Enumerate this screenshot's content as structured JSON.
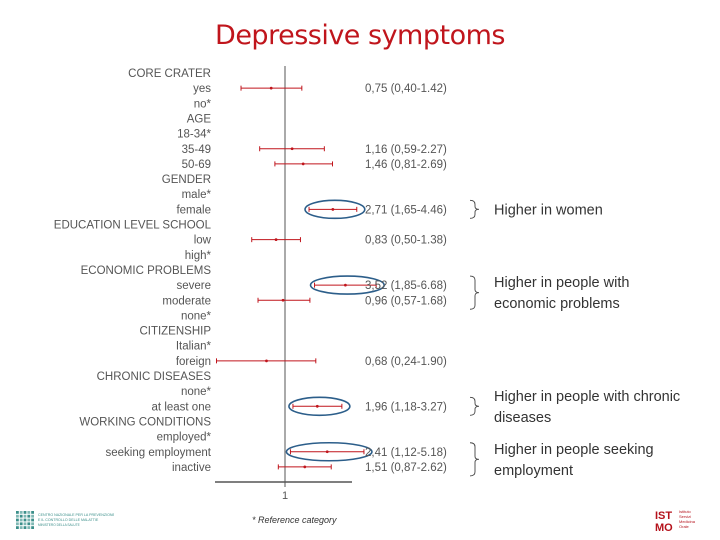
{
  "title": "Depressive symptoms",
  "footnote": "* Reference category",
  "logos": {
    "left_lines": [
      "CENTRO NAZIONALE PER LA PREVENZIONE",
      "E IL CONTROLLO DELLE MALATTIE",
      "MINISTERO DELLA SALUTE"
    ],
    "right_mark": "ISTMO",
    "right_lines": [
      "Istituto",
      "Servizi",
      "Medicina",
      "Orale"
    ]
  },
  "colors": {
    "title": "#c0151c",
    "ci_line": "#c0151c",
    "highlight_ellipse": "#2c5e8a",
    "axis": "#555555",
    "logo_right": "#b5121b",
    "logo_left": "#3b8f8a"
  },
  "chart_data": {
    "type": "forest",
    "xlabel": "",
    "ylabel": "",
    "reference_line": 1,
    "x_ticks": [
      1
    ],
    "rows": [
      {
        "label": "CORE CRATER",
        "header": true
      },
      {
        "label": "yes",
        "or": 0.75,
        "ci_low": 0.4,
        "ci_high": 1.42,
        "text": "0,75 (0,40-1.42)"
      },
      {
        "label": "no*"
      },
      {
        "label": "AGE",
        "header": true
      },
      {
        "label": "18-34*"
      },
      {
        "label": "35-49",
        "or": 1.16,
        "ci_low": 0.59,
        "ci_high": 2.27,
        "text": "1,16 (0,59-2.27)"
      },
      {
        "label": "50-69",
        "or": 1.46,
        "ci_low": 0.81,
        "ci_high": 2.69,
        "text": "1,46 (0,81-2.69)"
      },
      {
        "label": "GENDER",
        "header": true
      },
      {
        "label": "male*"
      },
      {
        "label": "female",
        "or": 2.71,
        "ci_low": 1.65,
        "ci_high": 4.46,
        "text": "2,71 (1,65-4.46)",
        "highlight": true
      },
      {
        "label": "EDUCATION LEVEL SCHOOL",
        "header": true
      },
      {
        "label": "low",
        "or": 0.83,
        "ci_low": 0.5,
        "ci_high": 1.38,
        "text": "0,83 (0,50-1.38)"
      },
      {
        "label": "high*"
      },
      {
        "label": "ECONOMIC PROBLEMS",
        "header": true
      },
      {
        "label": "severe",
        "or": 3.52,
        "ci_low": 1.85,
        "ci_high": 6.68,
        "text": "3,52 (1,85-6.68)",
        "highlight": true
      },
      {
        "label": "moderate",
        "or": 0.96,
        "ci_low": 0.57,
        "ci_high": 1.68,
        "text": "0,96 (0,57-1.68)"
      },
      {
        "label": "none*"
      },
      {
        "label": "CITIZENSHIP",
        "header": true
      },
      {
        "label": "Italian*"
      },
      {
        "label": "foreign",
        "or": 0.68,
        "ci_low": 0.24,
        "ci_high": 1.9,
        "text": "0,68 (0,24-1.90)"
      },
      {
        "label": "CHRONIC DISEASES",
        "header": true
      },
      {
        "label": "none*"
      },
      {
        "label": "at least one",
        "or": 1.96,
        "ci_low": 1.18,
        "ci_high": 3.27,
        "text": "1,96 (1,18-3.27)",
        "highlight": true
      },
      {
        "label": "WORKING CONDITIONS",
        "header": true
      },
      {
        "label": "employed*"
      },
      {
        "label": "seeking employment",
        "or": 2.41,
        "ci_low": 1.12,
        "ci_high": 5.18,
        "text": "2,41 (1,12-5.18)",
        "highlight": true
      },
      {
        "label": "inactive",
        "or": 1.51,
        "ci_low": 0.87,
        "ci_high": 2.62,
        "text": "1,51 (0,87-2.62)"
      }
    ],
    "annotations": [
      {
        "lines": [
          "Higher in women"
        ],
        "from_row": 9,
        "to_row": 9
      },
      {
        "lines": [
          "Higher in people with",
          "economic problems"
        ],
        "from_row": 14,
        "to_row": 15
      },
      {
        "lines": [
          "Higher in people with chronic",
          "diseases"
        ],
        "from_row": 22,
        "to_row": 22
      },
      {
        "lines": [
          "Higher in people seeking",
          "employment"
        ],
        "from_row": 25,
        "to_row": 26
      }
    ]
  }
}
